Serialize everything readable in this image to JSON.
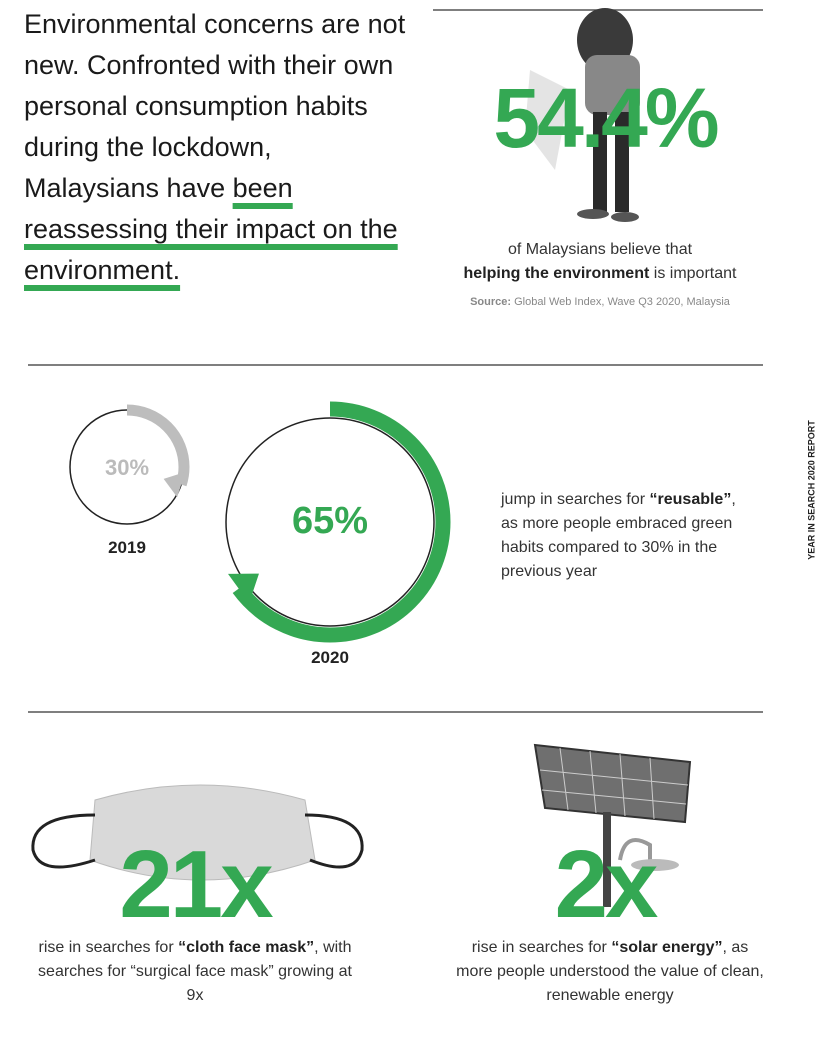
{
  "intro": {
    "text": "Environmental concerns are not new. Confronted with their own personal consumption habits during the lockdown, Malaysians have",
    "highlight": "been reassessing their impact on the environment."
  },
  "environment": {
    "figure": "54.4%",
    "caption_pre": "of Malaysians believe that",
    "caption_bold": "helping the environment",
    "caption_post": "is important",
    "source_label": "Source:",
    "source": "Global Web Index, Wave Q3 2020, Malaysia"
  },
  "reusable": {
    "before": {
      "value": 30,
      "label": "30%",
      "year": "2019"
    },
    "after": {
      "value": 65,
      "label": "65%",
      "year": "2020"
    },
    "caption_pre": "jump in searches for",
    "caption_bold": "“reusable”",
    "caption_post": ", as more people embraced green habits compared to 30% in the previous year"
  },
  "side_label": "YEAR IN SEARCH 2020 REPORT",
  "mask": {
    "figure": "21x",
    "caption_pre": "rise in searches for",
    "caption_bold": "“cloth face mask”",
    "caption_post": ", with searches for “surgical face mask” growing at 9x"
  },
  "solar": {
    "figure": "2x",
    "caption_pre": "rise in searches for",
    "caption_bold": "“solar energy”",
    "caption_post": ", as more people understood the value of clean, renewable energy"
  }
}
